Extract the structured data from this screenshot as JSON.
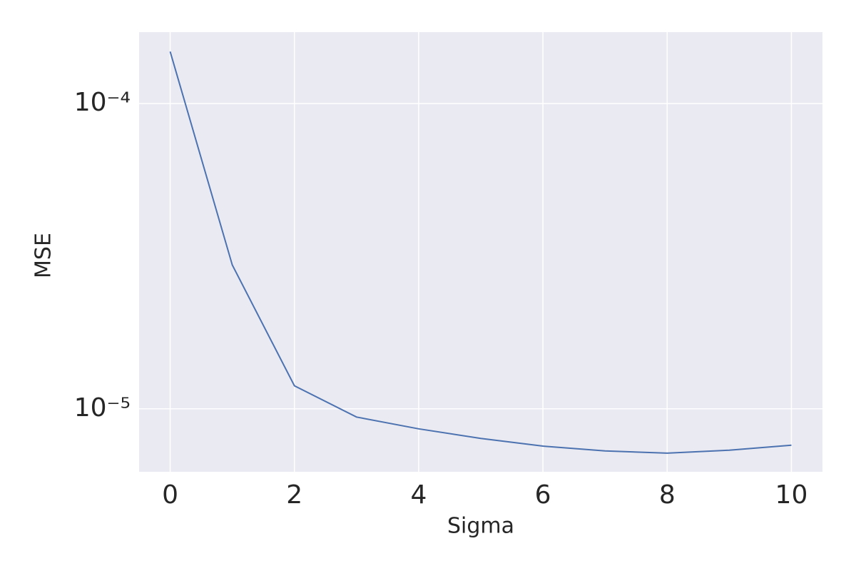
{
  "chart_data": {
    "type": "line",
    "x_label": "Sigma",
    "y_label": "MSE",
    "x": [
      0,
      1,
      2,
      3,
      4,
      5,
      6,
      7,
      8,
      9,
      10
    ],
    "series": [
      {
        "name": "MSE",
        "color": "#4c72b0",
        "values": [
          0.000148,
          2.96e-05,
          1.19e-05,
          9.4e-06,
          8.6e-06,
          8e-06,
          7.55e-06,
          7.28e-06,
          7.16e-06,
          7.32e-06,
          7.6e-06
        ]
      }
    ],
    "xlim": [
      -0.5,
      10.5
    ],
    "xticks": [
      0,
      2,
      4,
      6,
      8,
      10
    ],
    "ylim": [
      6.22e-06,
      0.0001714
    ],
    "yticks": [
      {
        "value": 0.0001,
        "label": "10⁻⁴"
      },
      {
        "value": 1e-05,
        "label": "10⁻⁵"
      }
    ],
    "y_scale": "log",
    "grid": true,
    "background": "#eaeaf2"
  }
}
